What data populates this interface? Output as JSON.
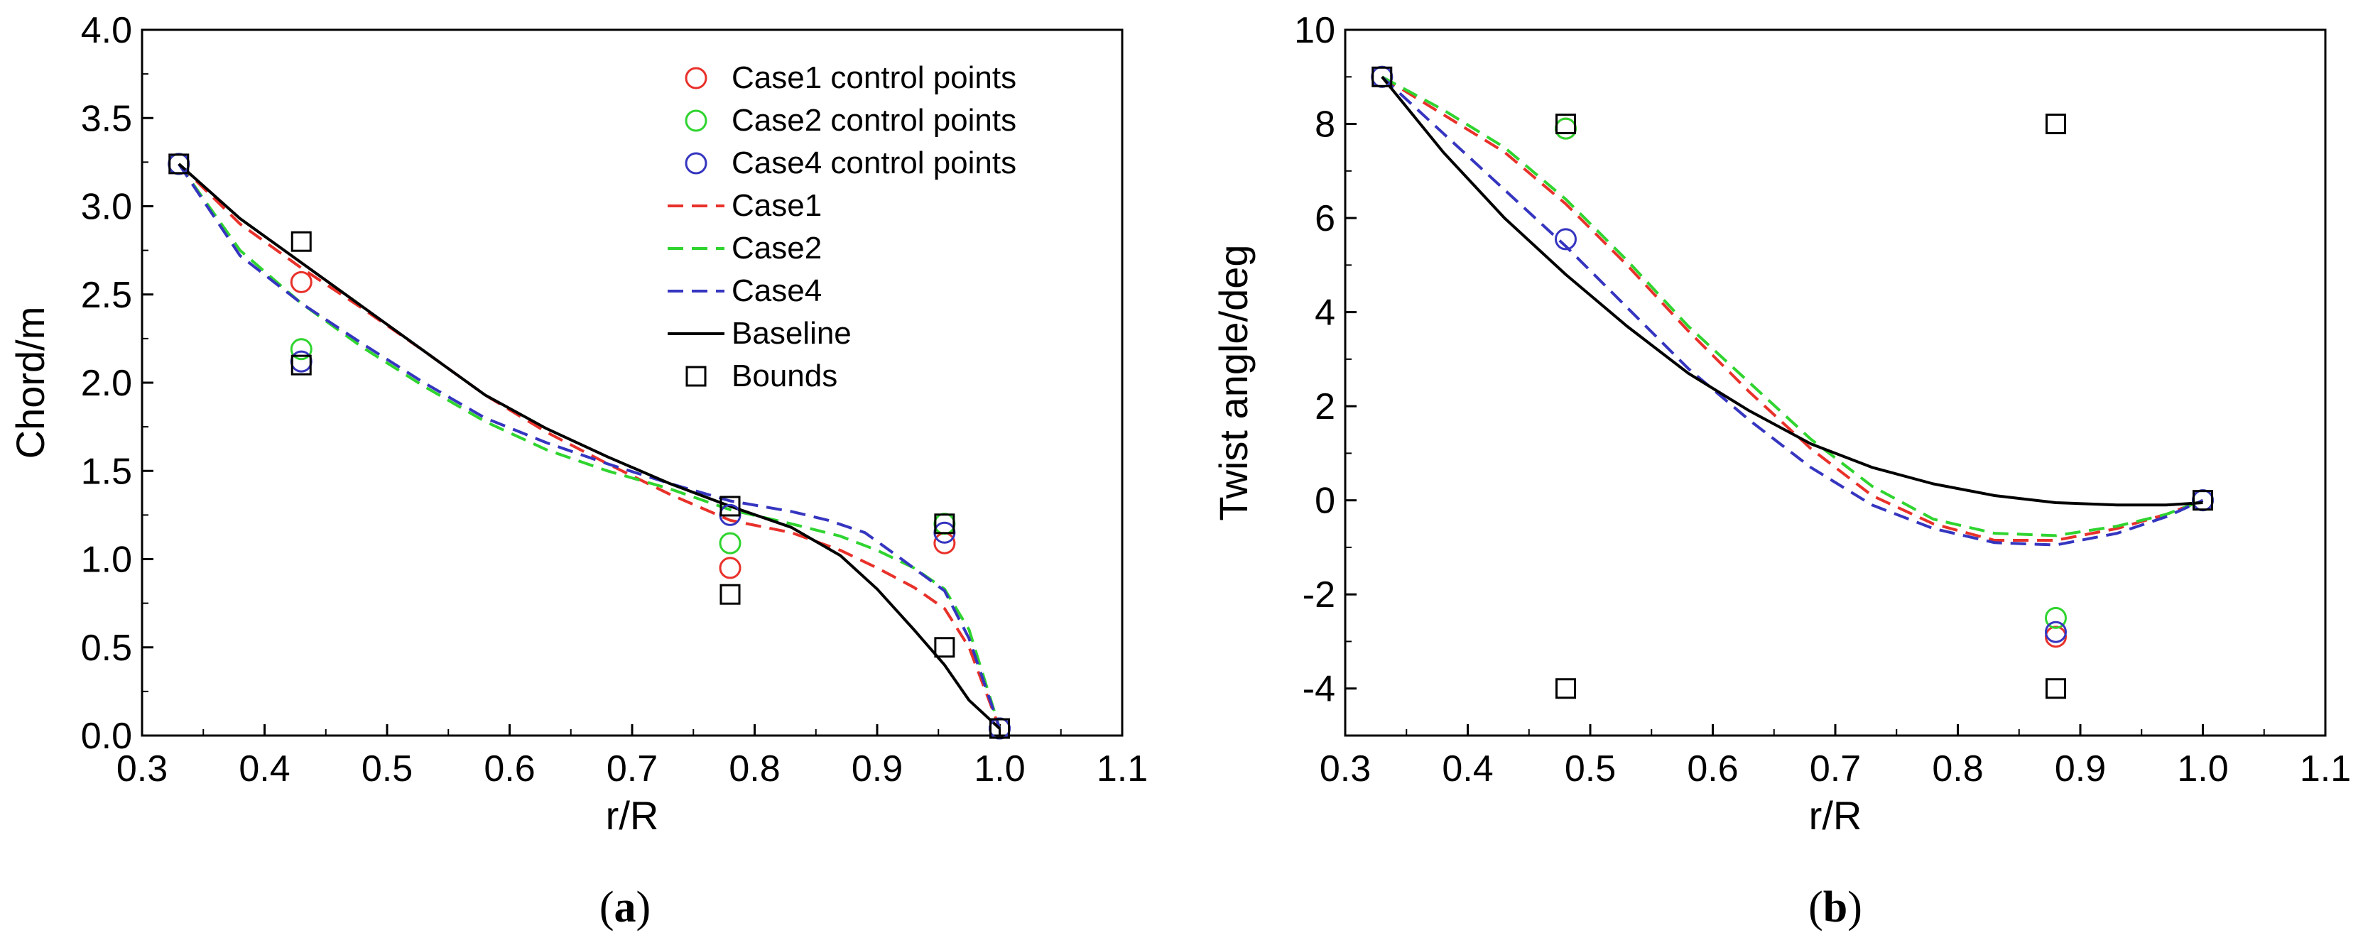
{
  "chart_data": [
    {
      "type": "line",
      "caption_letter": "a",
      "xlabel": "r/R",
      "ylabel": "Chord/m",
      "xlim": [
        0.3,
        1.1
      ],
      "ylim": [
        0.0,
        4.0
      ],
      "x_ticks": [
        "0.3",
        "0.4",
        "0.5",
        "0.6",
        "0.7",
        "0.8",
        "0.9",
        "1.0",
        "1.1"
      ],
      "y_ticks": [
        "0.0",
        "0.5",
        "1.0",
        "1.5",
        "2.0",
        "2.5",
        "3.0",
        "3.5",
        "4.0"
      ],
      "legend_position": "top-right",
      "legend": [
        {
          "label": "Case1 control points",
          "kind": "circle",
          "color": "#e8312a"
        },
        {
          "label": "Case2 control points",
          "kind": "circle",
          "color": "#2fd42f"
        },
        {
          "label": "Case4 control points",
          "kind": "circle",
          "color": "#3535c0"
        },
        {
          "label": "Case1",
          "kind": "dash",
          "color": "#e8312a"
        },
        {
          "label": "Case2",
          "kind": "dash",
          "color": "#2fd42f"
        },
        {
          "label": "Case4",
          "kind": "dash",
          "color": "#3535c0"
        },
        {
          "label": "Baseline",
          "kind": "solid",
          "color": "#000000"
        },
        {
          "label": "Bounds",
          "kind": "square",
          "color": "#000000"
        }
      ],
      "series": [
        {
          "name": "Case1",
          "style": "dash",
          "color": "#e8312a",
          "x": [
            0.33,
            0.38,
            0.43,
            0.48,
            0.53,
            0.58,
            0.63,
            0.68,
            0.73,
            0.78,
            0.83,
            0.87,
            0.9,
            0.93,
            0.955,
            0.975,
            1.0
          ],
          "y": [
            3.24,
            2.9,
            2.65,
            2.42,
            2.18,
            1.93,
            1.72,
            1.54,
            1.37,
            1.22,
            1.15,
            1.05,
            0.95,
            0.84,
            0.72,
            0.5,
            0.04
          ]
        },
        {
          "name": "Case2",
          "style": "dash",
          "color": "#2fd42f",
          "x": [
            0.33,
            0.38,
            0.43,
            0.48,
            0.53,
            0.58,
            0.63,
            0.68,
            0.73,
            0.78,
            0.83,
            0.87,
            0.9,
            0.93,
            0.955,
            0.975,
            1.0
          ],
          "y": [
            3.24,
            2.75,
            2.45,
            2.2,
            1.98,
            1.78,
            1.62,
            1.5,
            1.4,
            1.28,
            1.2,
            1.13,
            1.05,
            0.95,
            0.83,
            0.6,
            0.04
          ]
        },
        {
          "name": "Case4",
          "style": "dash",
          "color": "#3535c0",
          "x": [
            0.33,
            0.38,
            0.43,
            0.48,
            0.53,
            0.58,
            0.63,
            0.68,
            0.73,
            0.78,
            0.83,
            0.86,
            0.89,
            0.92,
            0.955,
            0.975,
            1.0
          ],
          "y": [
            3.24,
            2.72,
            2.45,
            2.22,
            2.0,
            1.8,
            1.66,
            1.54,
            1.43,
            1.33,
            1.27,
            1.22,
            1.15,
            1.0,
            0.82,
            0.55,
            0.04
          ]
        },
        {
          "name": "Baseline",
          "style": "solid",
          "color": "#000000",
          "x": [
            0.33,
            0.38,
            0.43,
            0.48,
            0.53,
            0.58,
            0.63,
            0.68,
            0.73,
            0.78,
            0.83,
            0.87,
            0.9,
            0.93,
            0.955,
            0.975,
            1.0
          ],
          "y": [
            3.24,
            2.93,
            2.68,
            2.43,
            2.18,
            1.93,
            1.74,
            1.58,
            1.43,
            1.3,
            1.18,
            1.02,
            0.83,
            0.6,
            0.4,
            0.2,
            0.04
          ]
        }
      ],
      "markers": [
        {
          "name": "Case1 control points",
          "shape": "circle",
          "color": "#e8312a",
          "x": [
            0.33,
            0.43,
            0.78,
            0.955,
            1.0
          ],
          "y": [
            3.24,
            2.57,
            0.95,
            1.09,
            0.04
          ]
        },
        {
          "name": "Case2 control points",
          "shape": "circle",
          "color": "#2fd42f",
          "x": [
            0.33,
            0.43,
            0.78,
            0.955,
            1.0
          ],
          "y": [
            3.24,
            2.19,
            1.09,
            1.2,
            0.04
          ]
        },
        {
          "name": "Case4 control points",
          "shape": "circle",
          "color": "#3535c0",
          "x": [
            0.33,
            0.43,
            0.78,
            0.955,
            1.0
          ],
          "y": [
            3.24,
            2.12,
            1.25,
            1.15,
            0.04
          ]
        },
        {
          "name": "Bounds",
          "shape": "square",
          "color": "#000000",
          "x": [
            0.33,
            0.43,
            0.43,
            0.78,
            0.78,
            0.955,
            0.955,
            1.0
          ],
          "y": [
            3.24,
            2.8,
            2.1,
            1.3,
            0.8,
            1.2,
            0.5,
            0.04
          ]
        }
      ]
    },
    {
      "type": "line",
      "caption_letter": "b",
      "xlabel": "r/R",
      "ylabel": "Twist angle/deg",
      "xlim": [
        0.3,
        1.1
      ],
      "ylim": [
        -5,
        10
      ],
      "x_ticks": [
        "0.3",
        "0.4",
        "0.5",
        "0.6",
        "0.7",
        "0.8",
        "0.9",
        "1.0",
        "1.1"
      ],
      "y_ticks": [
        "-4",
        "-2",
        "0",
        "2",
        "4",
        "6",
        "8",
        "10"
      ],
      "series": [
        {
          "name": "Case1",
          "style": "dash",
          "color": "#e8312a",
          "x": [
            0.33,
            0.38,
            0.43,
            0.48,
            0.53,
            0.58,
            0.63,
            0.68,
            0.73,
            0.78,
            0.83,
            0.88,
            0.93,
            0.97,
            1.0
          ],
          "y": [
            9.0,
            8.2,
            7.4,
            6.3,
            5.0,
            3.6,
            2.3,
            1.1,
            0.1,
            -0.5,
            -0.85,
            -0.85,
            -0.6,
            -0.3,
            0.0
          ]
        },
        {
          "name": "Case2",
          "style": "dash",
          "color": "#2fd42f",
          "x": [
            0.33,
            0.38,
            0.43,
            0.48,
            0.53,
            0.58,
            0.63,
            0.68,
            0.73,
            0.78,
            0.83,
            0.88,
            0.93,
            0.97,
            1.0
          ],
          "y": [
            9.0,
            8.3,
            7.5,
            6.4,
            5.1,
            3.7,
            2.5,
            1.3,
            0.3,
            -0.4,
            -0.7,
            -0.75,
            -0.55,
            -0.3,
            0.0
          ]
        },
        {
          "name": "Case4",
          "style": "dash",
          "color": "#3535c0",
          "x": [
            0.33,
            0.38,
            0.43,
            0.48,
            0.53,
            0.58,
            0.63,
            0.68,
            0.73,
            0.78,
            0.83,
            0.88,
            0.93,
            0.97,
            1.0
          ],
          "y": [
            9.0,
            7.8,
            6.6,
            5.4,
            4.1,
            2.8,
            1.7,
            0.7,
            -0.1,
            -0.6,
            -0.9,
            -0.95,
            -0.7,
            -0.35,
            0.0
          ]
        },
        {
          "name": "Baseline",
          "style": "solid",
          "color": "#000000",
          "x": [
            0.33,
            0.38,
            0.43,
            0.48,
            0.53,
            0.58,
            0.63,
            0.68,
            0.73,
            0.78,
            0.83,
            0.88,
            0.93,
            0.97,
            1.0
          ],
          "y": [
            9.0,
            7.4,
            6.0,
            4.8,
            3.7,
            2.7,
            1.9,
            1.2,
            0.7,
            0.35,
            0.1,
            -0.05,
            -0.1,
            -0.1,
            -0.05
          ]
        }
      ],
      "markers": [
        {
          "name": "Case1 control points",
          "shape": "circle",
          "color": "#e8312a",
          "x": [
            0.33,
            0.48,
            0.88,
            1.0
          ],
          "y": [
            9.0,
            7.9,
            -2.9,
            0.0
          ]
        },
        {
          "name": "Case2 control points",
          "shape": "circle",
          "color": "#2fd42f",
          "x": [
            0.33,
            0.48,
            0.88,
            1.0
          ],
          "y": [
            9.0,
            7.9,
            -2.5,
            0.0
          ]
        },
        {
          "name": "Case4 control points",
          "shape": "circle",
          "color": "#3535c0",
          "x": [
            0.33,
            0.48,
            0.88,
            1.0
          ],
          "y": [
            9.0,
            5.55,
            -2.8,
            0.0
          ]
        },
        {
          "name": "Bounds",
          "shape": "square",
          "color": "#000000",
          "x": [
            0.33,
            0.48,
            0.48,
            0.88,
            0.88,
            1.0
          ],
          "y": [
            9.0,
            8.0,
            -4.0,
            8.0,
            -4.0,
            0.0
          ]
        }
      ]
    }
  ]
}
